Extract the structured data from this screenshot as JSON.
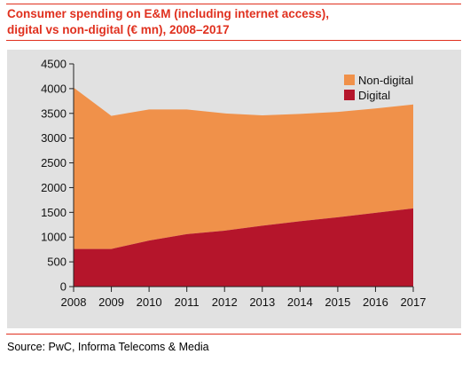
{
  "title_line1": "Consumer spending on E&M (including internet access),",
  "title_line2": "digital vs non-digital (€ mn), 2008–2017",
  "source": "Source: PwC, Informa Telecoms & Media",
  "colors": {
    "accent": "#e0301e",
    "non_digital": "#f0914a",
    "digital": "#b5152b",
    "plot_background": "#e1e1e1"
  },
  "chart_data": {
    "type": "area",
    "stacked": true,
    "x": [
      "2008",
      "2009",
      "2010",
      "2011",
      "2012",
      "2013",
      "2014",
      "2015",
      "2016",
      "2017"
    ],
    "series": [
      {
        "name": "Digital",
        "values": [
          760,
          760,
          930,
          1060,
          1130,
          1230,
          1320,
          1400,
          1490,
          1580
        ]
      },
      {
        "name": "Non-digital",
        "values": [
          3260,
          2690,
          2650,
          2520,
          2370,
          2230,
          2170,
          2130,
          2110,
          2100
        ]
      }
    ],
    "totals": [
      4020,
      3450,
      3580,
      3580,
      3500,
      3460,
      3490,
      3530,
      3600,
      3680
    ],
    "ylim": [
      0,
      4500
    ],
    "yticks": [
      0,
      500,
      1000,
      1500,
      2000,
      2500,
      3000,
      3500,
      4000,
      4500
    ],
    "grid": false,
    "legend_position": "top-right",
    "legend": [
      "Non-digital",
      "Digital"
    ]
  }
}
